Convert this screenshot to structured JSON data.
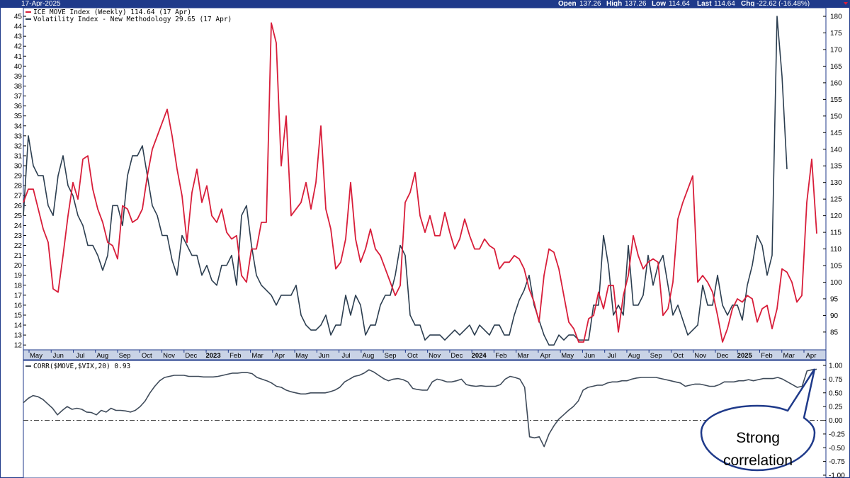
{
  "header": {
    "date": "17-Apr-2025",
    "open_label": "Open",
    "open_value": "137.26",
    "high_label": "High",
    "high_value": "137.26",
    "low_label": "Low",
    "low_value": "114.64",
    "last_label": "Last",
    "last_value": "114.64",
    "chg_label": "Chg",
    "chg_value": "-22.62 (-16.48%)"
  },
  "colors": {
    "frame": "#1f3a8a",
    "move": "#d81e3a",
    "vix": "#2c3e50",
    "corr": "#3f4b5a",
    "callout_border": "#1f3a8a"
  },
  "callout": {
    "line1": "Strong",
    "line2": "correlation"
  },
  "chart_data": [
    {
      "type": "line",
      "legend_placement": "top-left",
      "grid": false,
      "x_tick_labels": [
        "May",
        "Jun",
        "Jul",
        "Aug",
        "Sep",
        "Oct",
        "Nov",
        "Dec",
        "2023",
        "Feb",
        "Mar",
        "Apr",
        "May",
        "Jun",
        "Jul",
        "Aug",
        "Sep",
        "Oct",
        "Nov",
        "Dec",
        "2024",
        "Feb",
        "Mar",
        "Apr",
        "May",
        "Jun",
        "Jul",
        "Aug",
        "Sep",
        "Oct",
        "Nov",
        "Dec",
        "2025",
        "Feb",
        "Mar",
        "Apr"
      ],
      "x_tick_bold": [
        "2023",
        "2024",
        "2025"
      ],
      "left_axis": {
        "ticks": [
          12,
          13,
          14,
          15,
          16,
          17,
          18,
          19,
          20,
          21,
          22,
          23,
          24,
          25,
          26,
          27,
          28,
          29,
          30,
          31,
          32,
          33,
          34,
          35,
          36,
          37,
          38,
          39,
          40,
          41,
          42,
          43,
          44,
          45
        ]
      },
      "right_axis": {
        "ticks": [
          85,
          90,
          95,
          100,
          105,
          110,
          115,
          120,
          125,
          130,
          135,
          140,
          145,
          150,
          155,
          160,
          165,
          170,
          175,
          180
        ]
      },
      "series": [
        {
          "name": "ICE MOVE Index (Weekly) 114.64 (17 Apr)",
          "axis": "right",
          "values": [
            124,
            128,
            128,
            122,
            116,
            112,
            98,
            97,
            108,
            120,
            130,
            125,
            137,
            138,
            128,
            122,
            118,
            112,
            111,
            107,
            123,
            122,
            118,
            119,
            122,
            132,
            140,
            144,
            148,
            152,
            144,
            134,
            126,
            112,
            127,
            134,
            124,
            129,
            120,
            118,
            122,
            115,
            113,
            114,
            102,
            100,
            110,
            110,
            118,
            118,
            178,
            172,
            135,
            150,
            120,
            122,
            124,
            130,
            122,
            130,
            147,
            122,
            116,
            104,
            106,
            113,
            130,
            113,
            106,
            110,
            116,
            110,
            108,
            104,
            100,
            96,
            99,
            124,
            127,
            133,
            120,
            115,
            120,
            114,
            114,
            121,
            115,
            110,
            113,
            119,
            114,
            110,
            110,
            113,
            111,
            110,
            104,
            106,
            106,
            108,
            107,
            104,
            98,
            94,
            88,
            102,
            110,
            109,
            104,
            96,
            88,
            86,
            82,
            82,
            89,
            90,
            97,
            92,
            99,
            99,
            85,
            96,
            102,
            114,
            108,
            104,
            106,
            107,
            106,
            90,
            92,
            100,
            119,
            124,
            128,
            132,
            100,
            102,
            100,
            97,
            90,
            82,
            86,
            92,
            95,
            94,
            96,
            95,
            88,
            92,
            93,
            86,
            92,
            104,
            103,
            100,
            94,
            96,
            124,
            137,
            114.64
          ]
        },
        {
          "name": "Volatility Index - New Methodology 29.65 (17 Apr)",
          "axis": "left",
          "values": [
            25,
            33,
            30,
            29,
            29,
            26,
            25,
            29,
            31,
            28,
            27,
            25,
            24,
            22,
            22,
            21,
            19.5,
            21,
            26,
            26,
            24,
            29,
            31,
            31,
            32,
            29,
            26,
            25,
            23,
            23,
            20.5,
            19,
            23,
            22,
            21,
            21,
            19,
            20,
            18.5,
            18,
            20,
            20,
            21,
            18,
            25,
            26,
            22,
            19,
            18,
            17.5,
            17,
            16,
            17,
            17,
            17,
            18,
            15,
            14,
            13.5,
            13.5,
            14,
            15,
            13,
            14,
            14,
            17,
            15,
            17,
            16,
            13,
            14,
            14,
            16,
            17,
            17,
            19,
            22,
            21,
            15,
            14,
            14,
            12.5,
            13,
            13,
            13,
            12.5,
            13,
            13.5,
            13,
            13.5,
            14,
            13,
            14,
            13.5,
            13,
            14,
            14,
            13,
            13,
            15,
            16.5,
            17.5,
            19,
            16,
            14.5,
            13,
            12,
            12,
            13,
            12.5,
            13,
            13,
            12.5,
            12.5,
            12.5,
            16,
            16,
            23,
            20,
            15,
            16,
            15,
            22,
            16,
            16,
            17,
            21,
            18,
            20,
            21,
            18,
            15,
            16,
            14.5,
            13,
            13.5,
            14,
            18,
            16,
            16,
            19,
            16,
            15,
            16,
            16,
            14.5,
            18,
            20,
            23,
            22,
            19,
            21,
            45,
            39,
            29.65
          ]
        }
      ]
    },
    {
      "type": "line",
      "legend_placement": "top-left",
      "grid": false,
      "y_ticks": [
        "1.00",
        "0.75",
        "0.50",
        "0.25",
        "0.00",
        "-0.25",
        "-0.50",
        "-0.75",
        "-1.00"
      ],
      "ylim": [
        -1.0,
        1.0
      ],
      "reference_line": 0.0,
      "series": [
        {
          "name": "CORR($MOVE,$VIX,20) 0.93",
          "values": [
            0.32,
            0.4,
            0.45,
            0.43,
            0.38,
            0.3,
            0.22,
            0.1,
            0.18,
            0.25,
            0.2,
            0.22,
            0.2,
            0.15,
            0.14,
            0.1,
            0.18,
            0.15,
            0.22,
            0.18,
            0.18,
            0.17,
            0.15,
            0.18,
            0.25,
            0.35,
            0.5,
            0.62,
            0.72,
            0.78,
            0.8,
            0.82,
            0.82,
            0.82,
            0.8,
            0.8,
            0.8,
            0.79,
            0.79,
            0.79,
            0.8,
            0.82,
            0.84,
            0.86,
            0.86,
            0.87,
            0.87,
            0.85,
            0.78,
            0.75,
            0.72,
            0.68,
            0.62,
            0.6,
            0.55,
            0.52,
            0.5,
            0.48,
            0.48,
            0.5,
            0.5,
            0.5,
            0.5,
            0.52,
            0.55,
            0.6,
            0.7,
            0.75,
            0.8,
            0.82,
            0.86,
            0.92,
            0.88,
            0.82,
            0.76,
            0.72,
            0.75,
            0.76,
            0.74,
            0.7,
            0.58,
            0.56,
            0.55,
            0.55,
            0.7,
            0.75,
            0.73,
            0.7,
            0.7,
            0.72,
            0.75,
            0.65,
            0.63,
            0.62,
            0.63,
            0.62,
            0.62,
            0.62,
            0.65,
            0.75,
            0.8,
            0.78,
            0.75,
            0.6,
            -0.3,
            -0.32,
            -0.3,
            -0.48,
            -0.25,
            -0.1,
            0.02,
            0.1,
            0.18,
            0.25,
            0.35,
            0.55,
            0.6,
            0.62,
            0.64,
            0.64,
            0.68,
            0.7,
            0.7,
            0.72,
            0.72,
            0.75,
            0.77,
            0.78,
            0.78,
            0.78,
            0.78,
            0.76,
            0.74,
            0.72,
            0.7,
            0.68,
            0.62,
            0.64,
            0.66,
            0.66,
            0.64,
            0.62,
            0.62,
            0.65,
            0.7,
            0.7,
            0.7,
            0.72,
            0.72,
            0.74,
            0.72,
            0.74,
            0.76,
            0.76,
            0.76,
            0.78,
            0.75,
            0.7,
            0.65,
            0.6,
            0.62,
            0.9,
            0.92,
            0.93
          ]
        }
      ]
    }
  ]
}
